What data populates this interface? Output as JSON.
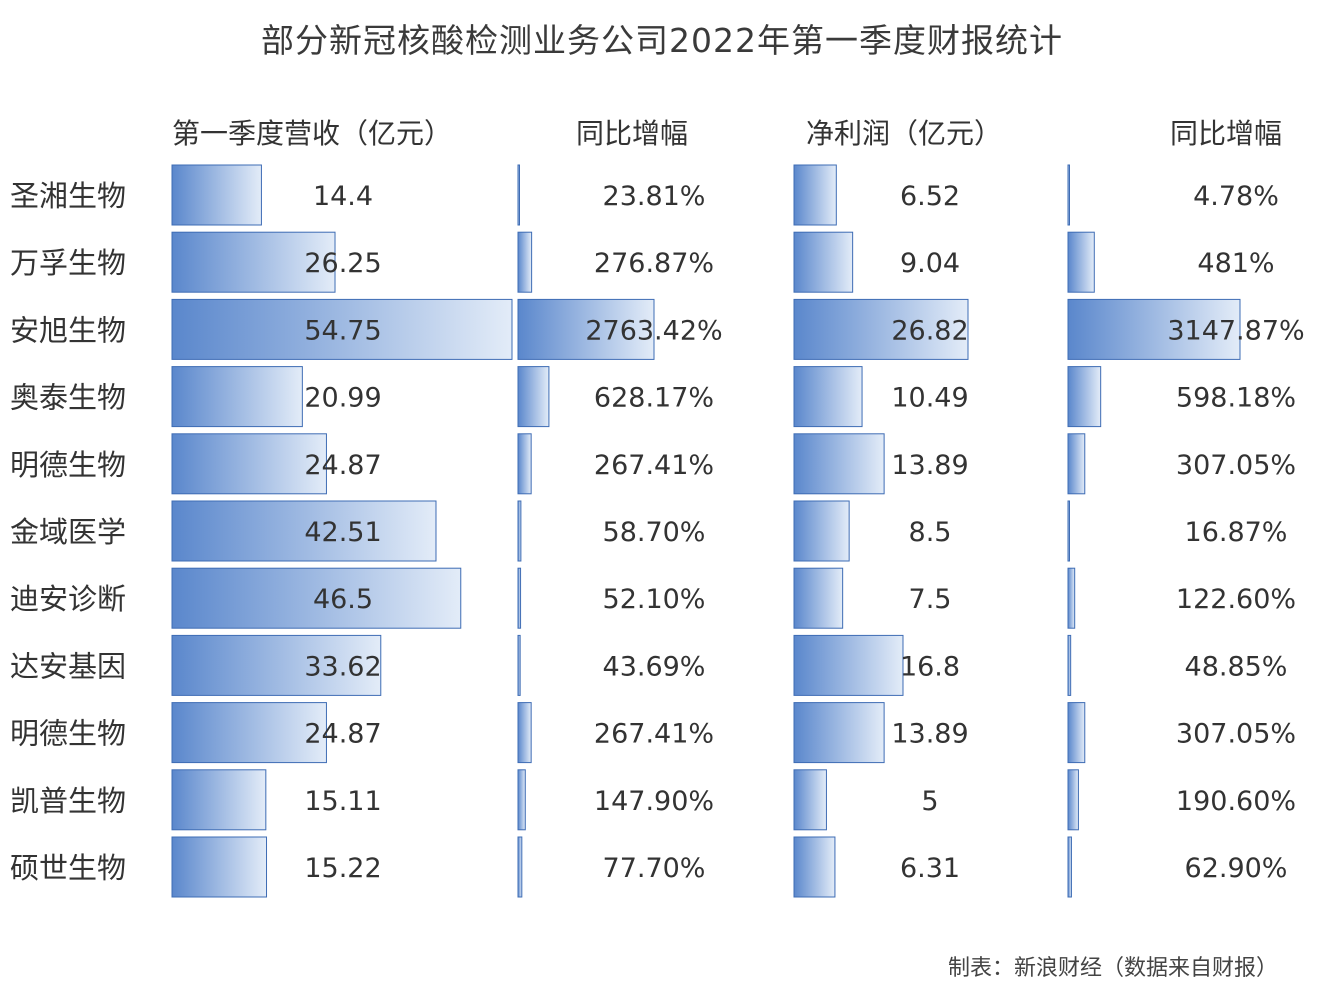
{
  "title": "部分新冠核酸检测业务公司2022年第一季度财报统计",
  "footer": "制表：新浪财经（数据来自财报）",
  "colors": {
    "bar_dark": "#5a87cc",
    "bar_light": "#e3ecf8",
    "bar_border": "#3e6cb4"
  },
  "chart_data": {
    "type": "bar",
    "orientation": "horizontal",
    "title": "部分新冠核酸检测业务公司2022年第一季度财报统计",
    "categories": [
      "圣湘生物",
      "万孚生物",
      "安旭生物",
      "奥泰生物",
      "明德生物",
      "金域医学",
      "迪安诊断",
      "达安基因",
      "明德生物",
      "凯普生物",
      "硕世生物"
    ],
    "columns": [
      {
        "name": "第一季度营收（亿元）",
        "values": [
          14.4,
          26.25,
          54.75,
          20.99,
          24.87,
          42.51,
          46.5,
          33.62,
          24.87,
          15.11,
          15.22
        ],
        "labels": [
          "14.4",
          "26.25",
          "54.75",
          "20.99",
          "24.87",
          "42.51",
          "46.5",
          "33.62",
          "24.87",
          "15.11",
          "15.22"
        ]
      },
      {
        "name": "同比增幅",
        "values": [
          23.81,
          276.87,
          2763.42,
          628.17,
          267.41,
          58.7,
          52.1,
          43.69,
          267.41,
          147.9,
          77.7
        ],
        "labels": [
          "23.81%",
          "276.87%",
          "2763.42%",
          "628.17%",
          "267.41%",
          "58.70%",
          "52.10%",
          "43.69%",
          "267.41%",
          "147.90%",
          "77.70%"
        ]
      },
      {
        "name": "净利润（亿元）",
        "values": [
          6.52,
          9.04,
          26.82,
          10.49,
          13.89,
          8.5,
          7.5,
          16.8,
          13.89,
          5,
          6.31
        ],
        "labels": [
          "6.52",
          "9.04",
          "26.82",
          "10.49",
          "13.89",
          "8.5",
          "7.5",
          "16.8",
          "13.89",
          "5",
          "6.31"
        ]
      },
      {
        "name": "同比增幅",
        "values": [
          4.78,
          481,
          3147.87,
          598.18,
          307.05,
          16.87,
          122.6,
          48.85,
          307.05,
          190.6,
          62.9
        ],
        "labels": [
          "4.78%",
          "481%",
          "3147.87%",
          "598.18%",
          "307.05%",
          "16.87%",
          "122.60%",
          "48.85%",
          "307.05%",
          "190.60%",
          "62.90%"
        ]
      }
    ]
  }
}
